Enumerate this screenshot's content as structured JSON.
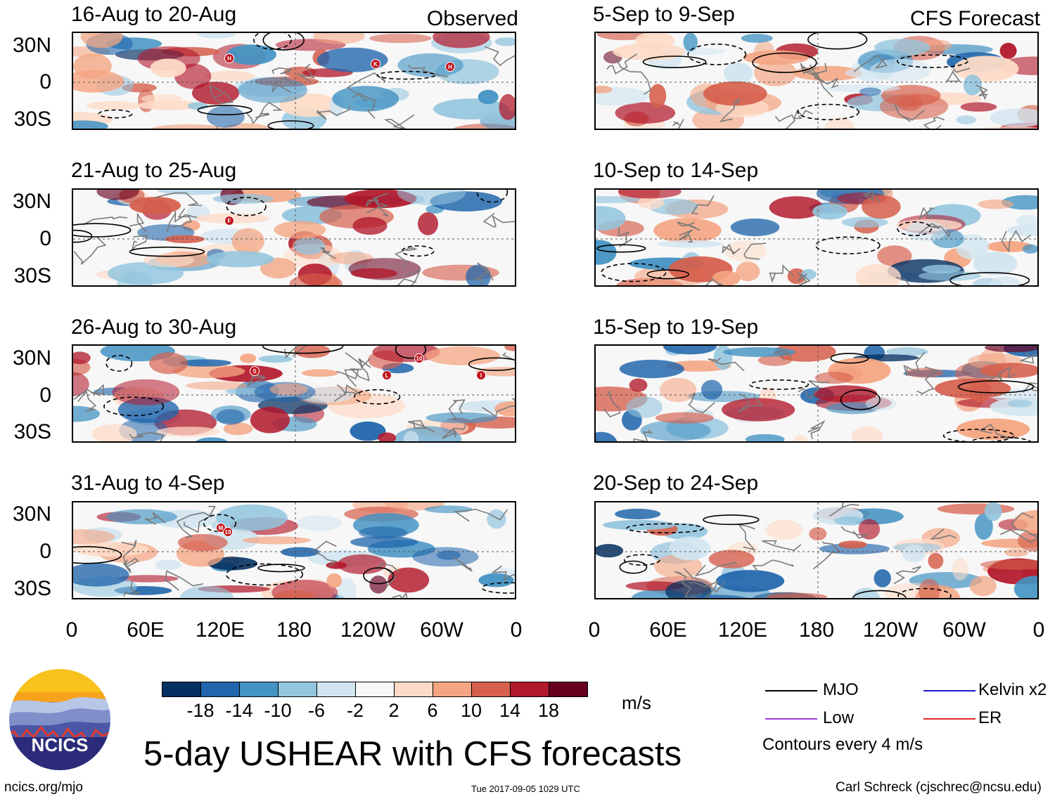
{
  "header": {
    "observed_label": "Observed",
    "forecast_label": "CFS Forecast"
  },
  "panels": {
    "observed": [
      {
        "title": "16-Aug to 20-Aug",
        "storms": [
          "H",
          "K",
          "H"
        ]
      },
      {
        "title": "21-Aug to 25-Aug",
        "storms": [
          "F"
        ]
      },
      {
        "title": "26-Aug to 30-Aug",
        "storms": [
          "S",
          "L",
          "10",
          "I"
        ]
      },
      {
        "title": "31-Aug to 4-Sep",
        "storms": [
          "M",
          "19"
        ]
      }
    ],
    "forecast": [
      {
        "title": "5-Sep to 9-Sep"
      },
      {
        "title": "10-Sep to 14-Sep"
      },
      {
        "title": "15-Sep to 19-Sep"
      },
      {
        "title": "20-Sep to 24-Sep"
      }
    ]
  },
  "axes": {
    "lat_labels": [
      "30N",
      "0",
      "30S"
    ],
    "lon_labels": [
      "0",
      "60E",
      "120E",
      "180",
      "120W",
      "60W",
      "0"
    ]
  },
  "colorbar": {
    "labels": [
      "-18",
      "-14",
      "-10",
      "-6",
      "-2",
      "2",
      "6",
      "10",
      "14",
      "18"
    ],
    "colors": [
      "#053061",
      "#2166ac",
      "#4393c3",
      "#92c5de",
      "#d1e5f0",
      "#f7f7f7",
      "#fddbc7",
      "#f4a582",
      "#d6604d",
      "#b2182b",
      "#67001f"
    ],
    "units": "m/s"
  },
  "title": "5-day USHEAR with CFS forecasts",
  "legend": {
    "mjo": "MJO",
    "kelvin": "Kelvin x2",
    "low": "Low",
    "er": "ER",
    "contour_note": "Contours every 4 m/s",
    "colors": {
      "mjo": "#000000",
      "kelvin": "#1a1acd",
      "low": "#9b3fd4",
      "er": "#e0282a"
    }
  },
  "logo": {
    "text": "NCICS"
  },
  "footer": {
    "url": "ncics.org/mjo",
    "timestamp": "Tue 2017-09-05 1029 UTC",
    "credit": "Carl Schreck (cjschrec@ncsu.edu)"
  },
  "chart_data": {
    "type": "heatmap",
    "title": "5-day USHEAR with CFS forecasts",
    "variable": "zonal wind shear (USHEAR) anomaly",
    "units": "m/s",
    "color_levels": [
      -18,
      -14,
      -10,
      -6,
      -2,
      2,
      6,
      10,
      14,
      18
    ],
    "contour_interval_mps": 4,
    "lat_range": [
      "30S",
      "30N"
    ],
    "lon_range": [
      "0",
      "0"
    ],
    "panels": [
      {
        "period": "16-Aug to 20-Aug",
        "source": "Observed"
      },
      {
        "period": "21-Aug to 25-Aug",
        "source": "Observed"
      },
      {
        "period": "26-Aug to 30-Aug",
        "source": "Observed"
      },
      {
        "period": "31-Aug to 4-Sep",
        "source": "Observed"
      },
      {
        "period": "5-Sep to 9-Sep",
        "source": "CFS Forecast"
      },
      {
        "period": "10-Sep to 14-Sep",
        "source": "CFS Forecast"
      },
      {
        "period": "15-Sep to 19-Sep",
        "source": "CFS Forecast"
      },
      {
        "period": "20-Sep to 24-Sep",
        "source": "CFS Forecast"
      }
    ]
  }
}
